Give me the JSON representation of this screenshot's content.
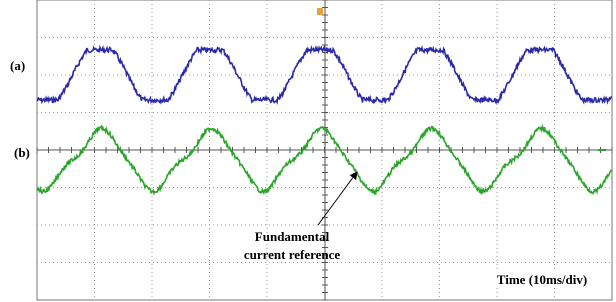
{
  "labels": {
    "trace_a": "(a)",
    "trace_b": "(b)",
    "annotation": [
      "Fundamental",
      "current reference"
    ],
    "time_axis": "Time (10ms/div)"
  }
}
